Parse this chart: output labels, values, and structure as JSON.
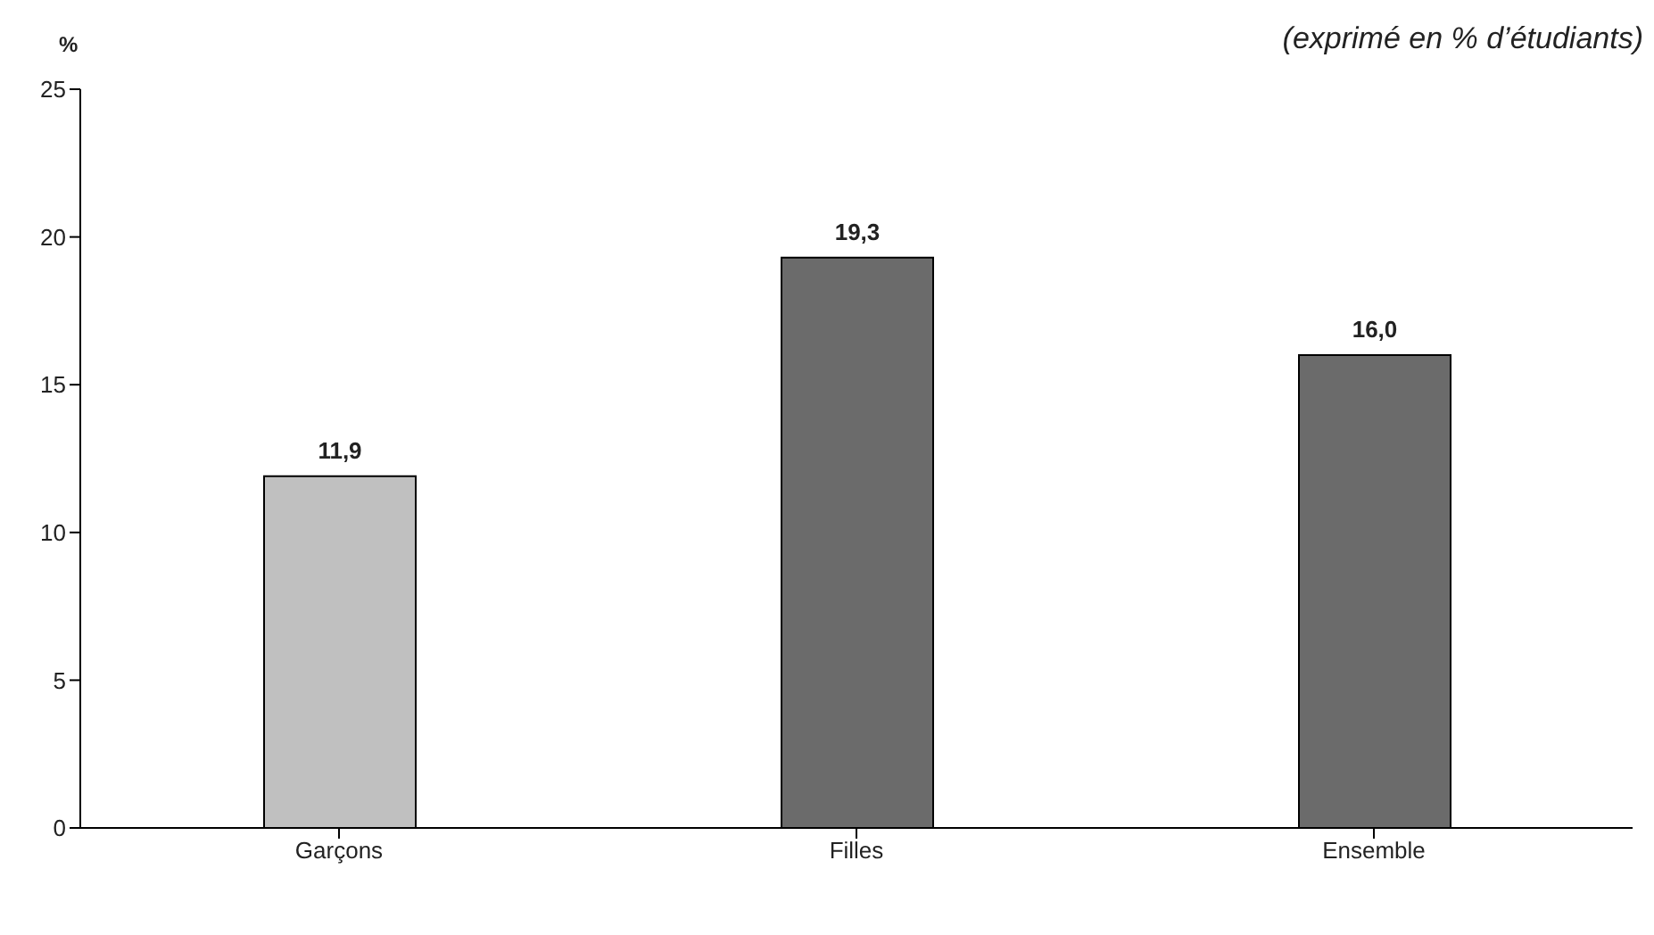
{
  "chart_data": {
    "type": "bar",
    "categories": [
      "Garçons",
      "Filles",
      "Ensemble"
    ],
    "values": [
      11.9,
      19.3,
      16.0
    ],
    "colors": [
      "#c0c0c0",
      "#6b6b6b",
      "#6b6b6b"
    ],
    "value_labels": [
      "11,9",
      "19,3",
      "16,0"
    ],
    "ylabel": "%",
    "annotations": [
      "(exprimé en % d’étudiants)"
    ],
    "ylim": [
      0,
      25
    ],
    "yticks": [
      0,
      5,
      10,
      15,
      20,
      25
    ],
    "grid": false,
    "legend": false
  }
}
